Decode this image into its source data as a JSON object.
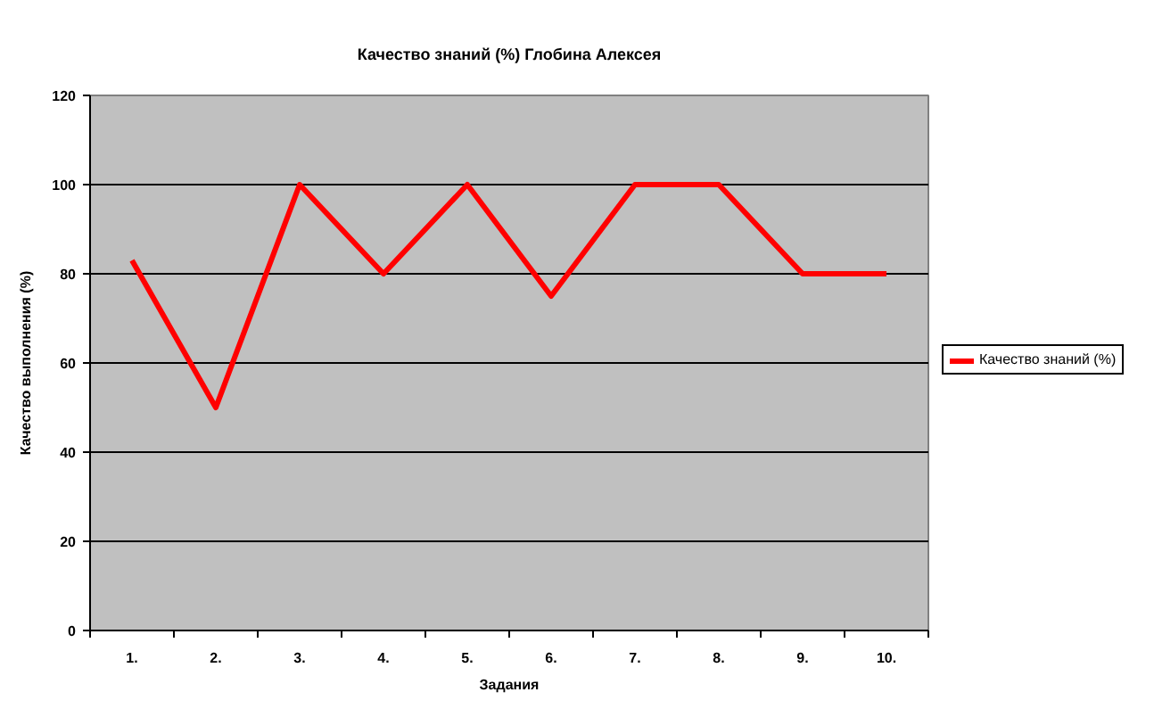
{
  "chart_data": {
    "type": "line",
    "title": "Качество знаний (%) Глобина Алексея",
    "xlabel": "Задания",
    "ylabel": "Качество выполнения (%)",
    "categories": [
      "1.",
      "2.",
      "3.",
      "4.",
      "5.",
      "6.",
      "7.",
      "8.",
      "9.",
      "10."
    ],
    "series": [
      {
        "name": "Качество знаний (%)",
        "color": "#ff0000",
        "values": [
          83,
          50,
          100,
          80,
          100,
          75,
          100,
          100,
          80,
          80
        ]
      }
    ],
    "ylim": [
      0,
      120
    ],
    "yticks": [
      0,
      20,
      40,
      60,
      80,
      100,
      120
    ],
    "grid": "y",
    "legend": "right",
    "line_style": "solid"
  }
}
